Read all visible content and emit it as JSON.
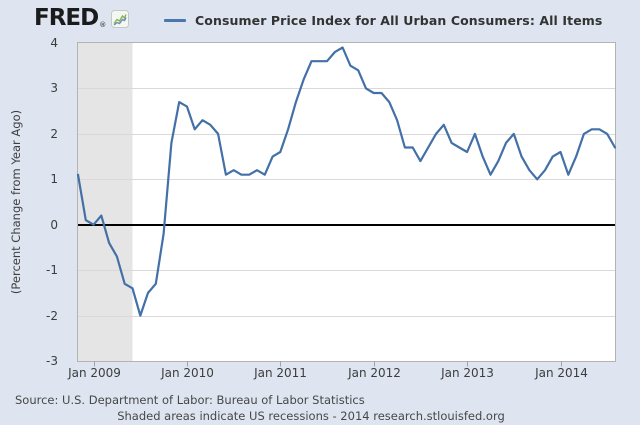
{
  "header": {
    "logo_text": "FRED",
    "logo_registered": "®"
  },
  "legend": {
    "series_label": "Consumer Price Index for All Urban Consumers: All Items"
  },
  "y_axis": {
    "title": "(Percent Change from Year Ago)",
    "ticks": [
      4,
      3,
      2,
      1,
      0,
      -1,
      -2,
      -3
    ]
  },
  "x_axis": {
    "ticks": [
      {
        "label": "Jan 2009",
        "month_index": 2
      },
      {
        "label": "Jan 2010",
        "month_index": 14
      },
      {
        "label": "Jan 2011",
        "month_index": 26
      },
      {
        "label": "Jan 2012",
        "month_index": 38
      },
      {
        "label": "Jan 2013",
        "month_index": 50
      },
      {
        "label": "Jan 2014",
        "month_index": 62
      }
    ]
  },
  "footer": {
    "source_line": "Source: U.S. Department of Labor: Bureau of Labor Statistics",
    "note_line": "Shaded areas indicate US recessions - 2014 research.stlouisfed.org"
  },
  "colors": {
    "page_bg": "#dee5f0",
    "plot_bg": "#ffffff",
    "recession_band": "#e5e5e5",
    "grid_line": "#d9d9d9",
    "plot_border": "#b3b3b3",
    "zero_line": "#000000",
    "series_line": "#4270a7",
    "tick_mark": "#9aa4b5",
    "logo_green": "#86b353",
    "logo_blue": "#6c8cb3"
  },
  "chart_data": {
    "type": "line",
    "title": "Consumer Price Index for All Urban Consumers: All Items",
    "ylabel": "(Percent Change from Year Ago)",
    "units": "percent change from year ago",
    "frequency": "monthly",
    "start_date": "Nov 2008",
    "end_date": "Aug 2014",
    "ylim": [
      -3,
      4
    ],
    "grid": true,
    "legend_position": "top",
    "zero_line": true,
    "recession_shading": {
      "note": "US recession (shaded area at left of plot)",
      "start_index": 0,
      "end_index": 7,
      "end_date": "Jun 2009"
    },
    "series": [
      {
        "name": "Consumer Price Index for All Urban Consumers: All Items",
        "values": [
          1.1,
          0.1,
          0.0,
          0.2,
          -0.4,
          -0.7,
          -1.3,
          -1.4,
          -2.0,
          -1.5,
          -1.3,
          -0.2,
          1.8,
          2.7,
          2.6,
          2.1,
          2.3,
          2.2,
          2.0,
          1.1,
          1.2,
          1.1,
          1.1,
          1.2,
          1.1,
          1.5,
          1.6,
          2.1,
          2.7,
          3.2,
          3.6,
          3.6,
          3.6,
          3.8,
          3.9,
          3.5,
          3.4,
          3.0,
          2.9,
          2.9,
          2.7,
          2.3,
          1.7,
          1.7,
          1.4,
          1.7,
          2.0,
          2.2,
          1.8,
          1.7,
          1.6,
          2.0,
          1.5,
          1.1,
          1.4,
          1.8,
          2.0,
          1.5,
          1.2,
          1.0,
          1.2,
          1.5,
          1.6,
          1.1,
          1.5,
          2.0,
          2.1,
          2.1,
          2.0,
          1.7
        ]
      }
    ]
  }
}
